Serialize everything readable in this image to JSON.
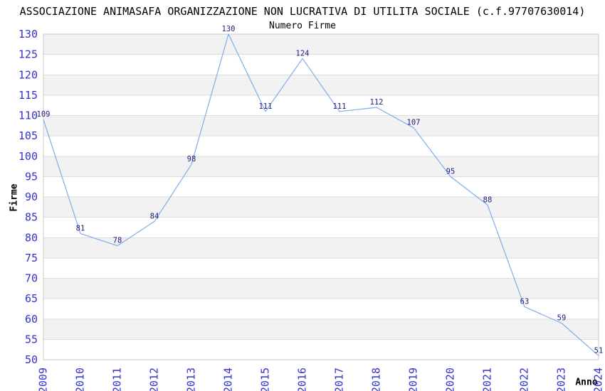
{
  "header": {
    "title": "ASSOCIAZIONE ANIMASAFA ORGANIZZAZIONE NON LUCRATIVA DI UTILITA SOCIALE (c.f.97707630014)"
  },
  "chart_data": {
    "type": "line",
    "title": "Numero Firme",
    "categories": [
      "2009",
      "2010",
      "2011",
      "2012",
      "2013",
      "2014",
      "2015",
      "2016",
      "2017",
      "2018",
      "2019",
      "2020",
      "2021",
      "2022",
      "2023",
      "2024"
    ],
    "values": [
      109,
      81,
      78,
      84,
      98,
      130,
      111,
      124,
      111,
      112,
      107,
      95,
      88,
      63,
      59,
      51
    ],
    "xlabel": "Anno",
    "ylabel": "Firme",
    "ylim": [
      50,
      130
    ],
    "ytick_step": 5,
    "grid": "horizontal",
    "legend_position": "none",
    "point_labels_visible": true,
    "colors": {
      "line": "#7faceb",
      "tick_label": "#3333cc",
      "point_label": "#20217c",
      "band_gray": "#f2f2f2",
      "band_white": "#ffffff",
      "grid_line": "#dcdcdc",
      "plot_border": "#c9c9c9",
      "text": "#000000",
      "background": "#ffffff"
    }
  }
}
